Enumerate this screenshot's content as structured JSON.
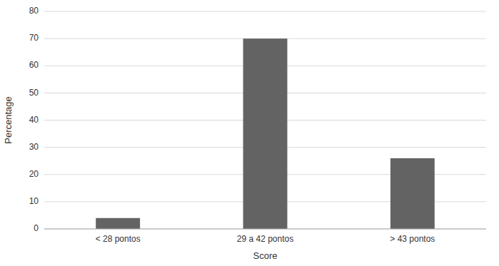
{
  "chart_data": {
    "type": "bar",
    "categories": [
      "< 28 pontos",
      "29 a 42 pontos",
      "> 43 pontos"
    ],
    "values": [
      4,
      70,
      26
    ],
    "color": "#636363",
    "xlabel": "Score",
    "ylabel": "Percentage",
    "ylim": [
      0,
      80
    ],
    "yticks": [
      0,
      10,
      20,
      30,
      40,
      50,
      60,
      70,
      80
    ],
    "grid": true
  }
}
